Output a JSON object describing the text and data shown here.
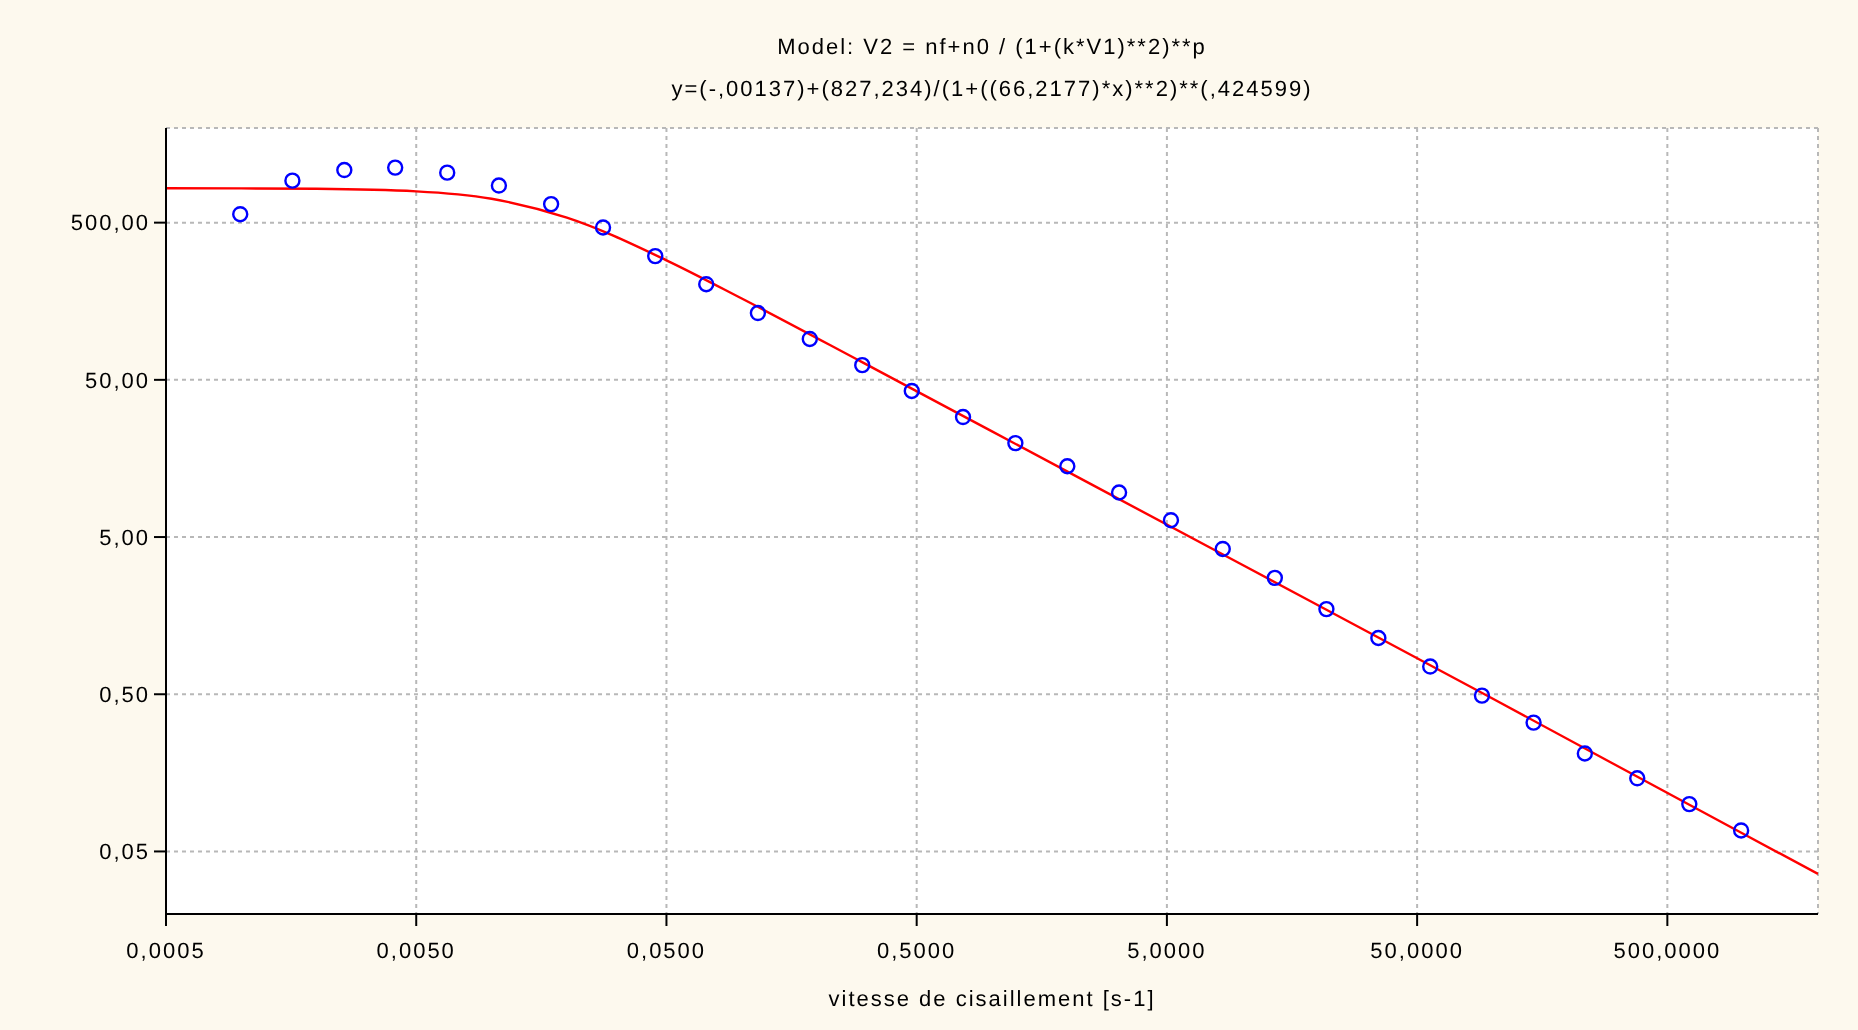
{
  "chart_data": {
    "type": "scatter",
    "title": "Model: V2 = nf+n0 / (1+(k*V1)**2)**p",
    "subtitle": "y=(-,00137)+(827,234)/(1+((66,2177)*x)**2)**(,424599)",
    "xlabel": "vitesse de cisaillement [s-1]",
    "log": "xy",
    "grid": true,
    "marker": "circle",
    "xlim": [
      0.0005,
      2000
    ],
    "ylim": [
      0.02,
      2000
    ],
    "xticks": [
      {
        "value": 0.0005,
        "label": "0,0005"
      },
      {
        "value": 0.005,
        "label": "0,0050"
      },
      {
        "value": 0.05,
        "label": "0,0500"
      },
      {
        "value": 0.5,
        "label": "0,5000"
      },
      {
        "value": 5,
        "label": "5,0000"
      },
      {
        "value": 50,
        "label": "50,0000"
      },
      {
        "value": 500,
        "label": "500,0000"
      }
    ],
    "yticks": [
      {
        "value": 0.05,
        "label": "0,05"
      },
      {
        "value": 0.5,
        "label": "0,50"
      },
      {
        "value": 5,
        "label": "5,00"
      },
      {
        "value": 50,
        "label": "50,00"
      },
      {
        "value": 500,
        "label": "500,00"
      }
    ],
    "series": [
      {
        "color": "#0000ff",
        "x": [
          0.00099,
          0.0016,
          0.00258,
          0.00412,
          0.00665,
          0.0107,
          0.0173,
          0.0279,
          0.0451,
          0.0721,
          0.116,
          0.187,
          0.303,
          0.478,
          0.766,
          1.24,
          2.0,
          3.22,
          5.19,
          8.36,
          13.5,
          21.7,
          35.0,
          56.4,
          90.8,
          146,
          234,
          379,
          612,
          986
        ],
        "values": [
          566,
          925,
          1080,
          1120,
          1040,
          861,
          656,
          466,
          306,
          203,
          133,
          91,
          62,
          42.5,
          29,
          19.8,
          14.1,
          9.6,
          6.4,
          4.2,
          2.75,
          1.74,
          1.14,
          0.75,
          0.49,
          0.33,
          0.21,
          0.146,
          0.1,
          0.068
        ]
      },
      {
        "type": "line",
        "color": "#ff0000",
        "marker": "none",
        "line_style": "solid",
        "x": [
          0.0005,
          0.001,
          0.002,
          0.005,
          0.01,
          0.02,
          0.05,
          0.1,
          0.3,
          1,
          10,
          100,
          1000,
          2000
        ],
        "values": [
          827,
          826,
          821,
          791,
          709,
          538,
          288,
          164.5,
          65.3,
          23.5,
          3.33,
          0.47,
          0.065,
          0.036
        ]
      }
    ]
  }
}
